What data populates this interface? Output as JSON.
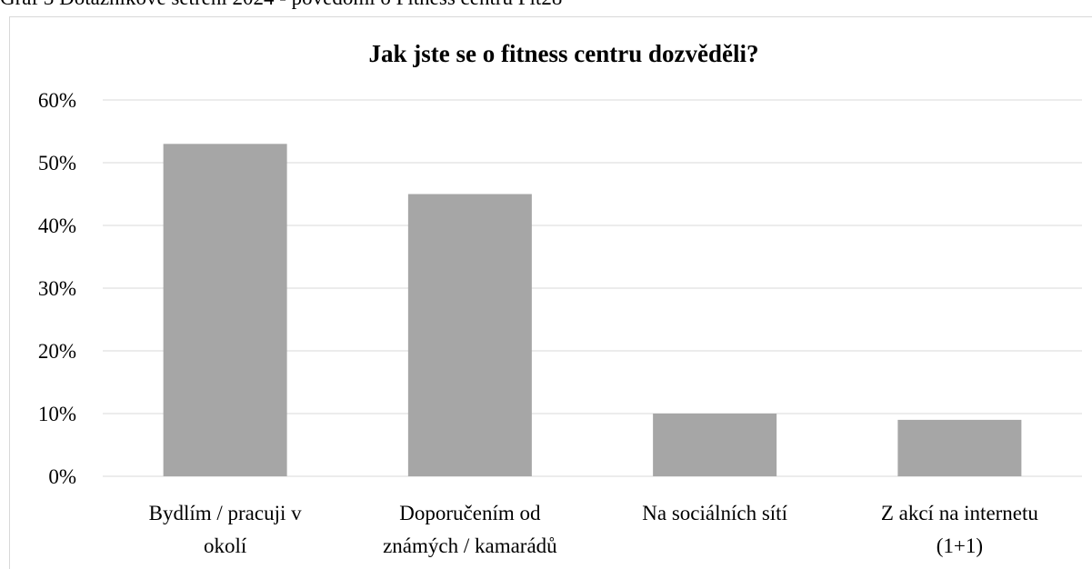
{
  "caption": "Graf 3 Dotazníkové šetření 2024 - povědomí o Fitness centru Fit28",
  "chart_data": {
    "type": "bar",
    "title": "Jak jste se o fitness centru dozvěděli?",
    "categories": [
      [
        "Bydlím / pracuji v",
        "okolí"
      ],
      [
        "Doporučením od",
        "známých / kamarádů"
      ],
      [
        "Na sociálních sítí"
      ],
      [
        "Z akcí na internetu",
        "(1+1)"
      ]
    ],
    "values": [
      53,
      45,
      10,
      9
    ],
    "color": "#a6a6a6",
    "ylim": [
      0,
      60
    ],
    "yticks": [
      {
        "value": 0,
        "label": "0%"
      },
      {
        "value": 10,
        "label": "10%"
      },
      {
        "value": 20,
        "label": "20%"
      },
      {
        "value": 30,
        "label": "30%"
      },
      {
        "value": 40,
        "label": "40%"
      },
      {
        "value": 50,
        "label": "50%"
      },
      {
        "value": 60,
        "label": "60%"
      }
    ],
    "grid": true
  }
}
